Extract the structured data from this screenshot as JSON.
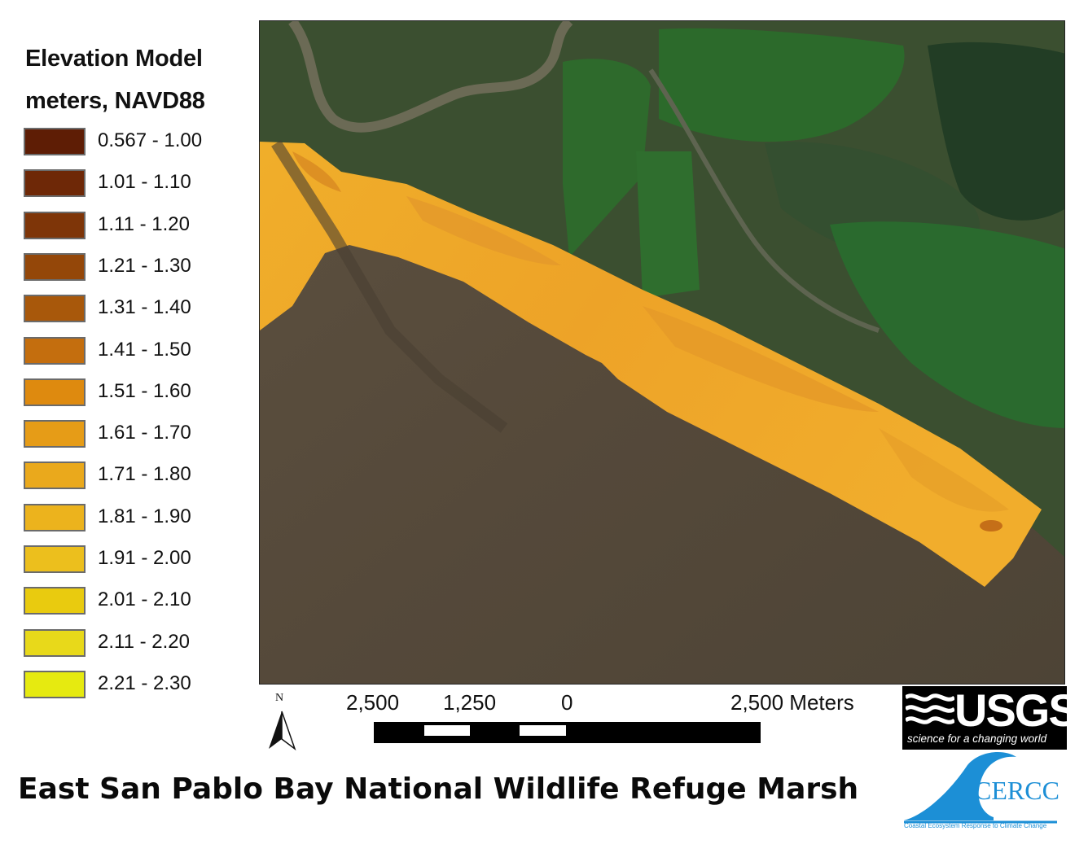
{
  "legend": {
    "title_line1": "Elevation Model",
    "title_line2": "meters, NAVD88",
    "items": [
      {
        "label": "0.567 - 1.00",
        "color": "#5e1d05"
      },
      {
        "label": "1.01 - 1.10",
        "color": "#6e2807"
      },
      {
        "label": "1.11 - 1.20",
        "color": "#7e3508"
      },
      {
        "label": "1.21 - 1.30",
        "color": "#944709"
      },
      {
        "label": "1.31 - 1.40",
        "color": "#a8580b"
      },
      {
        "label": "1.41 - 1.50",
        "color": "#c46e0e"
      },
      {
        "label": "1.51 - 1.60",
        "color": "#de8a0f"
      },
      {
        "label": "1.61 - 1.70",
        "color": "#e69c17"
      },
      {
        "label": "1.71 - 1.80",
        "color": "#eaa91c"
      },
      {
        "label": "1.81 - 1.90",
        "color": "#ecb31d"
      },
      {
        "label": "1.91 - 2.00",
        "color": "#ecbf1d"
      },
      {
        "label": "2.01 - 2.10",
        "color": "#e9cb0f"
      },
      {
        "label": "2.11 - 2.20",
        "color": "#e8d91a"
      },
      {
        "label": "2.21 - 2.30",
        "color": "#e6ea10"
      }
    ]
  },
  "north_arrow": {
    "label": "N"
  },
  "scale_bar": {
    "labels": [
      "2,500",
      "1,250",
      "0",
      "2,500 Meters"
    ]
  },
  "usgs": {
    "name": "USGS",
    "tagline": "science for a changing world"
  },
  "cercc": {
    "name": "CERCC",
    "tagline": "Coastal Ecosystem Response to Climate Change"
  },
  "map_title": "East San Pablo Bay National Wildlife Refuge Marsh",
  "colors": {
    "bay_water": "#574a3a",
    "marsh_green": "#2f5a2a",
    "pond_green": "#2a6a2e",
    "elevation_main": "#eea62a"
  }
}
